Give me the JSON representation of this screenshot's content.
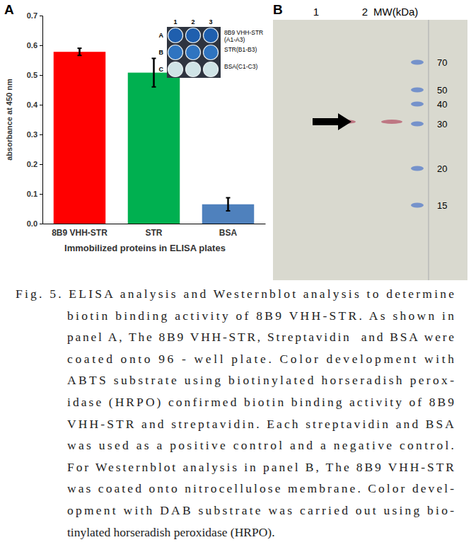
{
  "chart_data": {
    "type": "bar",
    "categories": [
      "8B9 VHH-STR",
      "STR",
      "BSA"
    ],
    "values": [
      0.578,
      0.508,
      0.065
    ],
    "errors": [
      0.012,
      0.048,
      0.022
    ],
    "colors": [
      "#ff0000",
      "#00b050",
      "#4f81bd"
    ],
    "ylim": [
      0,
      0.7
    ],
    "yticks": [
      {
        "value": 0,
        "label": "0.0"
      },
      0.1,
      0.2,
      0.3,
      0.4,
      0.5,
      0.6,
      0.7
    ],
    "y_label": "absorbance at 450 nm",
    "x_label": "Immobilized proteins in ELISA plates"
  },
  "panel_labels": [
    "A",
    "B"
  ],
  "inset": {
    "columns": [
      "1",
      "2",
      "3"
    ],
    "rows": [
      "A",
      "B",
      "C"
    ],
    "row_labels": [
      [
        "8B9 VHH-STR",
        "(A1-A3)"
      ],
      [
        "STR(B1-B3)"
      ],
      [
        "BSA(C1-C3)"
      ]
    ]
  },
  "blot": {
    "lanes": [
      "1",
      "2"
    ],
    "mw_title": "MW(kDa)",
    "mw_markers": [
      70,
      50,
      40,
      30,
      20,
      15
    ]
  },
  "caption": {
    "lines": [
      "Fig. 5. ELISA analysis and Westernblot analysis to determine",
      "biotin binding activity of 8B9 VHH-STR. As shown in",
      "panel A, The 8B9 VHH-STR, Streptavidin  and BSA were",
      "coated onto 96 - well plate. Color development with",
      "ABTS substrate using biotinylated horseradish perox-",
      "idase (HRPO) confirmed biotin binding activity of 8B9",
      "VHH-STR and streptavidin. Each streptavidin and BSA",
      "was used as a positive control and a negative control.",
      "For Westernblot analysis in panel B, The 8B9 VHH-STR",
      "was coated onto nitrocellulose membrane. Color devel-",
      "opment with DAB substrate was carried out using bio-",
      "tinylated horseradish peroxidase (HRPO)."
    ]
  }
}
